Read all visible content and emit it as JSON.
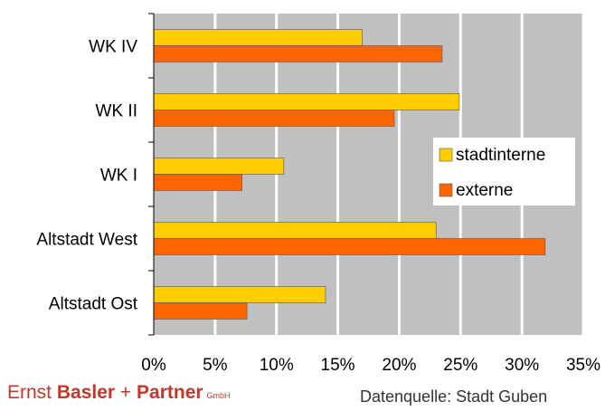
{
  "chart_data": {
    "type": "bar",
    "orientation": "horizontal",
    "categories": [
      "WK IV",
      "WK II",
      "WK I",
      "Altstadt West",
      "Altstadt Ost"
    ],
    "series": [
      {
        "name": "stadtinterne",
        "values": [
          17.0,
          24.9,
          10.6,
          23.0,
          14.0
        ],
        "color": "#ffcc00"
      },
      {
        "name": "externe",
        "values": [
          23.5,
          19.6,
          7.2,
          31.9,
          7.6
        ],
        "color": "#ff6600"
      }
    ],
    "x_ticks": [
      "0%",
      "5%",
      "10%",
      "15%",
      "20%",
      "25%",
      "30%",
      "35%"
    ],
    "xlim": [
      0,
      35
    ],
    "grid": true,
    "background_color": "#c0c0c0",
    "legend_position": "right"
  },
  "footer": {
    "logo_part1": "Ernst ",
    "logo_part2": "Basler",
    "logo_part3": " + ",
    "logo_part4": "Partner",
    "logo_suffix": "GmbH",
    "source": "Datenquelle: Stadt Guben"
  }
}
